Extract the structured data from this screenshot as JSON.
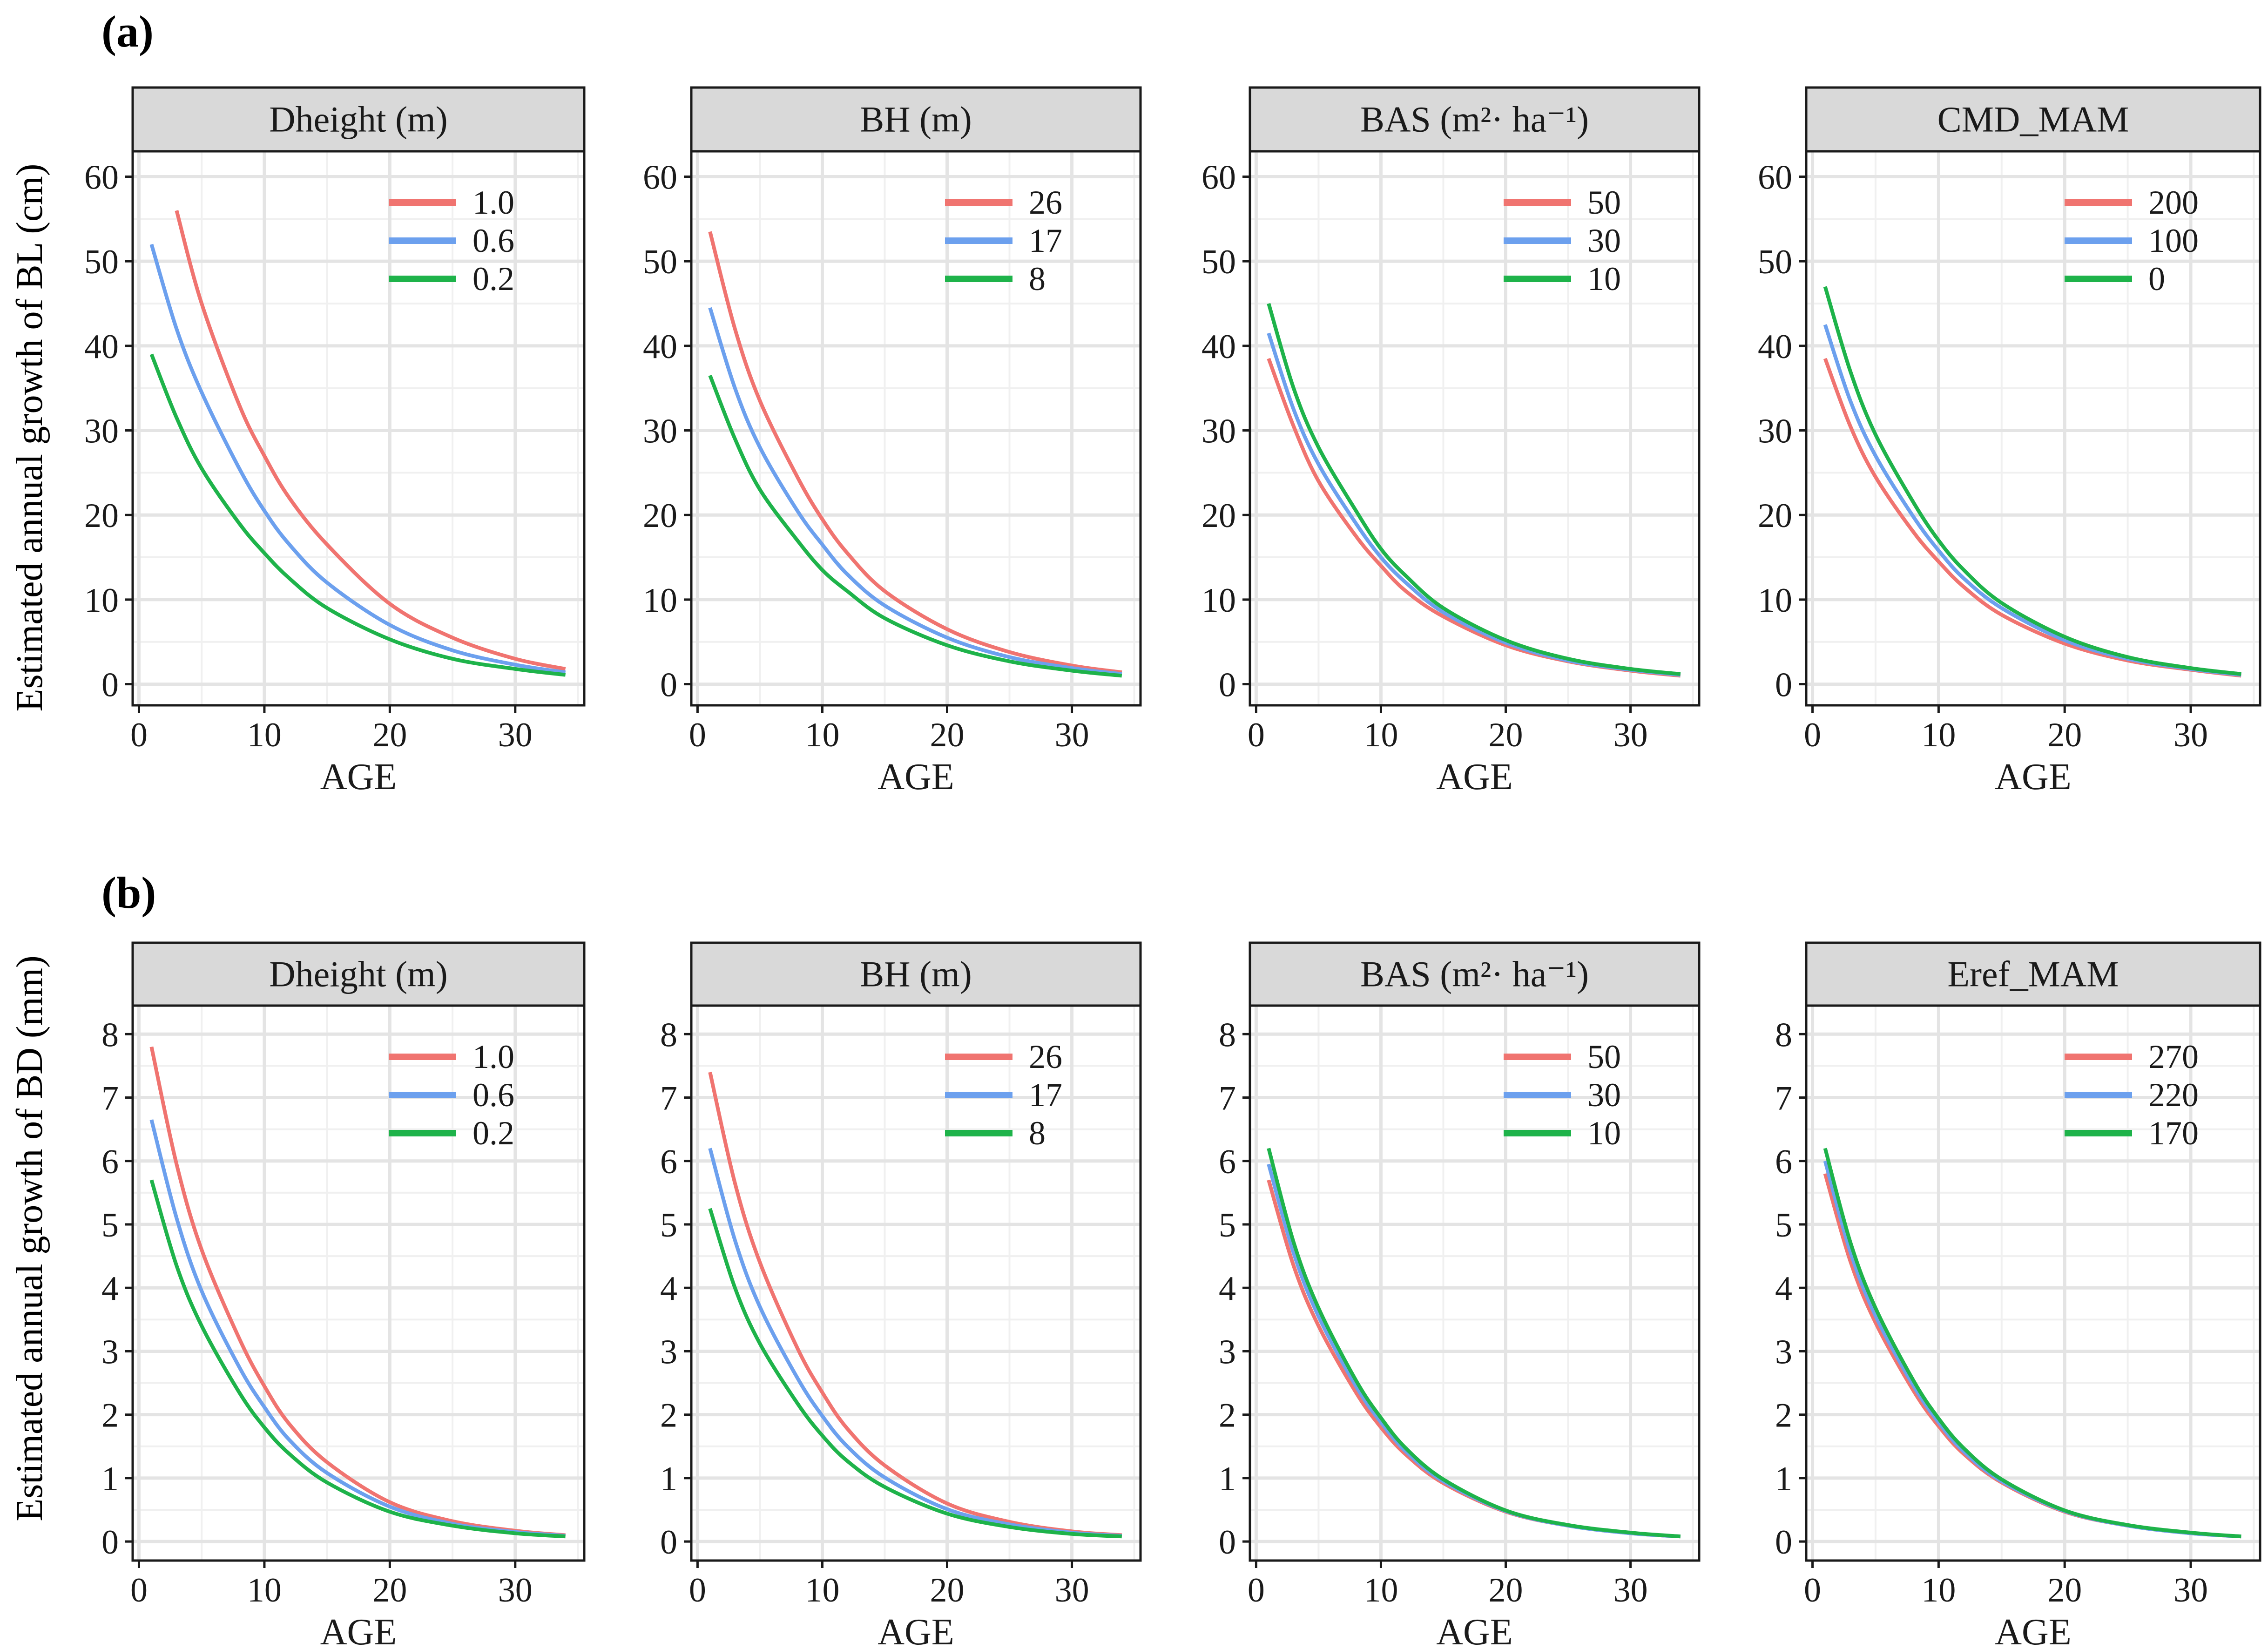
{
  "figure": {
    "rows": [
      {
        "label": "(a)",
        "ylabel": "Estimated annual growth of BL (cm)"
      },
      {
        "label": "(b)",
        "ylabel": "Estimated annual growth of BD (mm)"
      }
    ]
  },
  "colors": {
    "red": "#F07470",
    "blue": "#6CA0EE",
    "green": "#1EB34A"
  },
  "chart_data": [
    {
      "type": "line",
      "row": 0,
      "col": 0,
      "title": "Dheight (m)",
      "xlabel": "AGE",
      "xlim": [
        -0.5,
        35.5
      ],
      "ylim": [
        -2.5,
        63
      ],
      "xticks": [
        0,
        10,
        20,
        30
      ],
      "yticks": [
        0,
        10,
        20,
        30,
        40,
        50,
        60
      ],
      "legend_position": "top-right",
      "series": [
        {
          "name": "1.0",
          "color": "#F07470",
          "x": [
            3,
            5,
            8,
            10,
            12,
            15,
            20,
            25,
            30,
            34
          ],
          "y": [
            56.0,
            45.0,
            33.0,
            27.0,
            22.0,
            16.5,
            9.5,
            5.5,
            3.0,
            1.8
          ]
        },
        {
          "name": "0.6",
          "color": "#6CA0EE",
          "x": [
            1,
            3,
            5,
            8,
            10,
            12,
            15,
            20,
            25,
            30,
            34
          ],
          "y": [
            52.0,
            42.0,
            34.5,
            25.5,
            20.5,
            16.5,
            12.0,
            7.0,
            4.0,
            2.3,
            1.4
          ]
        },
        {
          "name": "0.2",
          "color": "#1EB34A",
          "x": [
            1,
            3,
            5,
            8,
            10,
            12,
            15,
            20,
            25,
            30,
            34
          ],
          "y": [
            39.0,
            31.5,
            25.5,
            19.0,
            15.5,
            12.5,
            9.0,
            5.3,
            3.0,
            1.8,
            1.1
          ]
        }
      ]
    },
    {
      "type": "line",
      "row": 0,
      "col": 1,
      "title": "BH (m)",
      "xlabel": "AGE",
      "xlim": [
        -0.5,
        35.5
      ],
      "ylim": [
        -2.5,
        63
      ],
      "xticks": [
        0,
        10,
        20,
        30
      ],
      "yticks": [
        0,
        10,
        20,
        30,
        40,
        50,
        60
      ],
      "legend_position": "top-right",
      "series": [
        {
          "name": "26",
          "color": "#F07470",
          "x": [
            1,
            3,
            5,
            8,
            10,
            12,
            15,
            20,
            25,
            30,
            34
          ],
          "y": [
            53.5,
            42.0,
            33.5,
            24.5,
            19.5,
            15.5,
            11.0,
            6.5,
            3.8,
            2.2,
            1.4
          ]
        },
        {
          "name": "17",
          "color": "#6CA0EE",
          "x": [
            1,
            3,
            5,
            8,
            10,
            12,
            15,
            20,
            25,
            30,
            34
          ],
          "y": [
            44.5,
            35.0,
            28.0,
            20.5,
            16.5,
            13.0,
            9.3,
            5.5,
            3.2,
            1.9,
            1.2
          ]
        },
        {
          "name": "8",
          "color": "#1EB34A",
          "x": [
            1,
            3,
            5,
            8,
            10,
            12,
            15,
            20,
            25,
            30,
            34
          ],
          "y": [
            36.5,
            29.0,
            23.0,
            17.0,
            13.5,
            11.0,
            7.8,
            4.6,
            2.7,
            1.6,
            1.0
          ]
        }
      ]
    },
    {
      "type": "line",
      "row": 0,
      "col": 2,
      "title": "BAS (m²· ha⁻¹)",
      "xlabel": "AGE",
      "xlim": [
        -0.5,
        35.5
      ],
      "ylim": [
        -2.5,
        63
      ],
      "xticks": [
        0,
        10,
        20,
        30
      ],
      "yticks": [
        0,
        10,
        20,
        30,
        40,
        50,
        60
      ],
      "legend_position": "top-right",
      "series": [
        {
          "name": "50",
          "color": "#F07470",
          "x": [
            1,
            3,
            5,
            8,
            10,
            12,
            15,
            20,
            25,
            30,
            34
          ],
          "y": [
            38.5,
            30.5,
            24.0,
            17.5,
            14.0,
            11.0,
            8.0,
            4.6,
            2.7,
            1.6,
            1.0
          ]
        },
        {
          "name": "30",
          "color": "#6CA0EE",
          "x": [
            1,
            3,
            5,
            8,
            10,
            12,
            15,
            20,
            25,
            30,
            34
          ],
          "y": [
            41.5,
            32.5,
            26.0,
            19.0,
            15.0,
            12.0,
            8.5,
            4.9,
            2.8,
            1.7,
            1.1
          ]
        },
        {
          "name": "10",
          "color": "#1EB34A",
          "x": [
            1,
            3,
            5,
            8,
            10,
            12,
            15,
            20,
            25,
            30,
            34
          ],
          "y": [
            45.0,
            35.0,
            28.0,
            20.5,
            16.0,
            12.8,
            9.0,
            5.2,
            3.0,
            1.8,
            1.2
          ]
        }
      ]
    },
    {
      "type": "line",
      "row": 0,
      "col": 3,
      "title": "CMD_MAM",
      "xlabel": "AGE",
      "xlim": [
        -0.5,
        35.5
      ],
      "ylim": [
        -2.5,
        63
      ],
      "xticks": [
        0,
        10,
        20,
        30
      ],
      "yticks": [
        0,
        10,
        20,
        30,
        40,
        50,
        60
      ],
      "legend_position": "top-right",
      "series": [
        {
          "name": "200",
          "color": "#F07470",
          "x": [
            1,
            3,
            5,
            8,
            10,
            12,
            15,
            20,
            25,
            30,
            34
          ],
          "y": [
            38.5,
            30.5,
            24.5,
            18.0,
            14.5,
            11.5,
            8.2,
            4.8,
            2.8,
            1.7,
            1.0
          ]
        },
        {
          "name": "100",
          "color": "#6CA0EE",
          "x": [
            1,
            3,
            5,
            8,
            10,
            12,
            15,
            20,
            25,
            30,
            34
          ],
          "y": [
            42.5,
            33.5,
            27.0,
            19.8,
            15.8,
            12.5,
            9.0,
            5.2,
            3.0,
            1.8,
            1.1
          ]
        },
        {
          "name": "0",
          "color": "#1EB34A",
          "x": [
            1,
            3,
            5,
            8,
            10,
            12,
            15,
            20,
            25,
            30,
            34
          ],
          "y": [
            47.0,
            37.0,
            29.5,
            21.5,
            17.0,
            13.5,
            9.6,
            5.6,
            3.2,
            1.9,
            1.2
          ]
        }
      ]
    },
    {
      "type": "line",
      "row": 1,
      "col": 0,
      "title": "Dheight (m)",
      "xlabel": "AGE",
      "xlim": [
        -0.5,
        35.5
      ],
      "ylim": [
        -0.3,
        8.45
      ],
      "xticks": [
        0,
        10,
        20,
        30
      ],
      "yticks": [
        0,
        1,
        2,
        3,
        4,
        5,
        6,
        7,
        8
      ],
      "legend_position": "top-right",
      "series": [
        {
          "name": "1.0",
          "color": "#F07470",
          "x": [
            1,
            3,
            5,
            8,
            10,
            12,
            15,
            20,
            25,
            30,
            34
          ],
          "y": [
            7.8,
            5.95,
            4.6,
            3.2,
            2.45,
            1.85,
            1.25,
            0.62,
            0.32,
            0.17,
            0.1
          ]
        },
        {
          "name": "0.6",
          "color": "#6CA0EE",
          "x": [
            1,
            3,
            5,
            8,
            10,
            12,
            15,
            20,
            25,
            30,
            34
          ],
          "y": [
            6.65,
            5.1,
            3.95,
            2.75,
            2.12,
            1.6,
            1.08,
            0.55,
            0.28,
            0.15,
            0.09
          ]
        },
        {
          "name": "0.2",
          "color": "#1EB34A",
          "x": [
            1,
            3,
            5,
            8,
            10,
            12,
            15,
            20,
            25,
            30,
            34
          ],
          "y": [
            5.7,
            4.35,
            3.4,
            2.35,
            1.8,
            1.38,
            0.93,
            0.47,
            0.25,
            0.13,
            0.08
          ]
        }
      ]
    },
    {
      "type": "line",
      "row": 1,
      "col": 1,
      "title": "BH (m)",
      "xlabel": "AGE",
      "xlim": [
        -0.5,
        35.5
      ],
      "ylim": [
        -0.3,
        8.45
      ],
      "xticks": [
        0,
        10,
        20,
        30
      ],
      "yticks": [
        0,
        1,
        2,
        3,
        4,
        5,
        6,
        7,
        8
      ],
      "legend_position": "top-right",
      "series": [
        {
          "name": "26",
          "color": "#F07470",
          "x": [
            1,
            3,
            5,
            8,
            10,
            12,
            15,
            20,
            25,
            30,
            34
          ],
          "y": [
            7.4,
            5.65,
            4.4,
            3.05,
            2.35,
            1.78,
            1.2,
            0.6,
            0.31,
            0.16,
            0.1
          ]
        },
        {
          "name": "17",
          "color": "#6CA0EE",
          "x": [
            1,
            3,
            5,
            8,
            10,
            12,
            15,
            20,
            25,
            30,
            34
          ],
          "y": [
            6.2,
            4.75,
            3.7,
            2.58,
            1.98,
            1.5,
            1.01,
            0.51,
            0.27,
            0.14,
            0.09
          ]
        },
        {
          "name": "8",
          "color": "#1EB34A",
          "x": [
            1,
            3,
            5,
            8,
            10,
            12,
            15,
            20,
            25,
            30,
            34
          ],
          "y": [
            5.25,
            4.0,
            3.12,
            2.18,
            1.67,
            1.27,
            0.86,
            0.44,
            0.23,
            0.12,
            0.08
          ]
        }
      ]
    },
    {
      "type": "line",
      "row": 1,
      "col": 2,
      "title": "BAS (m²· ha⁻¹)",
      "xlabel": "AGE",
      "xlim": [
        -0.5,
        35.5
      ],
      "ylim": [
        -0.3,
        8.45
      ],
      "xticks": [
        0,
        10,
        20,
        30
      ],
      "yticks": [
        0,
        1,
        2,
        3,
        4,
        5,
        6,
        7,
        8
      ],
      "legend_position": "top-right",
      "series": [
        {
          "name": "50",
          "color": "#F07470",
          "x": [
            1,
            3,
            5,
            8,
            10,
            12,
            15,
            20,
            25,
            30,
            34
          ],
          "y": [
            5.7,
            4.35,
            3.4,
            2.35,
            1.8,
            1.37,
            0.92,
            0.47,
            0.25,
            0.13,
            0.08
          ]
        },
        {
          "name": "30",
          "color": "#6CA0EE",
          "x": [
            1,
            3,
            5,
            8,
            10,
            12,
            15,
            20,
            25,
            30,
            34
          ],
          "y": [
            5.95,
            4.55,
            3.55,
            2.45,
            1.88,
            1.42,
            0.95,
            0.48,
            0.25,
            0.13,
            0.08
          ]
        },
        {
          "name": "10",
          "color": "#1EB34A",
          "x": [
            1,
            3,
            5,
            8,
            10,
            12,
            15,
            20,
            25,
            30,
            34
          ],
          "y": [
            6.2,
            4.72,
            3.68,
            2.54,
            1.95,
            1.47,
            0.98,
            0.49,
            0.26,
            0.14,
            0.08
          ]
        }
      ]
    },
    {
      "type": "line",
      "row": 1,
      "col": 3,
      "title": "Eref_MAM",
      "xlabel": "AGE",
      "xlim": [
        -0.5,
        35.5
      ],
      "ylim": [
        -0.3,
        8.45
      ],
      "xticks": [
        0,
        10,
        20,
        30
      ],
      "yticks": [
        0,
        1,
        2,
        3,
        4,
        5,
        6,
        7,
        8
      ],
      "legend_position": "top-right",
      "series": [
        {
          "name": "270",
          "color": "#F07470",
          "x": [
            1,
            3,
            5,
            8,
            10,
            12,
            15,
            20,
            25,
            30,
            34
          ],
          "y": [
            5.8,
            4.42,
            3.45,
            2.38,
            1.82,
            1.38,
            0.93,
            0.47,
            0.25,
            0.13,
            0.08
          ]
        },
        {
          "name": "220",
          "color": "#6CA0EE",
          "x": [
            1,
            3,
            5,
            8,
            10,
            12,
            15,
            20,
            25,
            30,
            34
          ],
          "y": [
            6.0,
            4.57,
            3.56,
            2.46,
            1.88,
            1.42,
            0.95,
            0.48,
            0.25,
            0.13,
            0.08
          ]
        },
        {
          "name": "170",
          "color": "#1EB34A",
          "x": [
            1,
            3,
            5,
            8,
            10,
            12,
            15,
            20,
            25,
            30,
            34
          ],
          "y": [
            6.2,
            4.72,
            3.68,
            2.54,
            1.94,
            1.47,
            0.98,
            0.49,
            0.26,
            0.14,
            0.08
          ]
        }
      ]
    }
  ]
}
